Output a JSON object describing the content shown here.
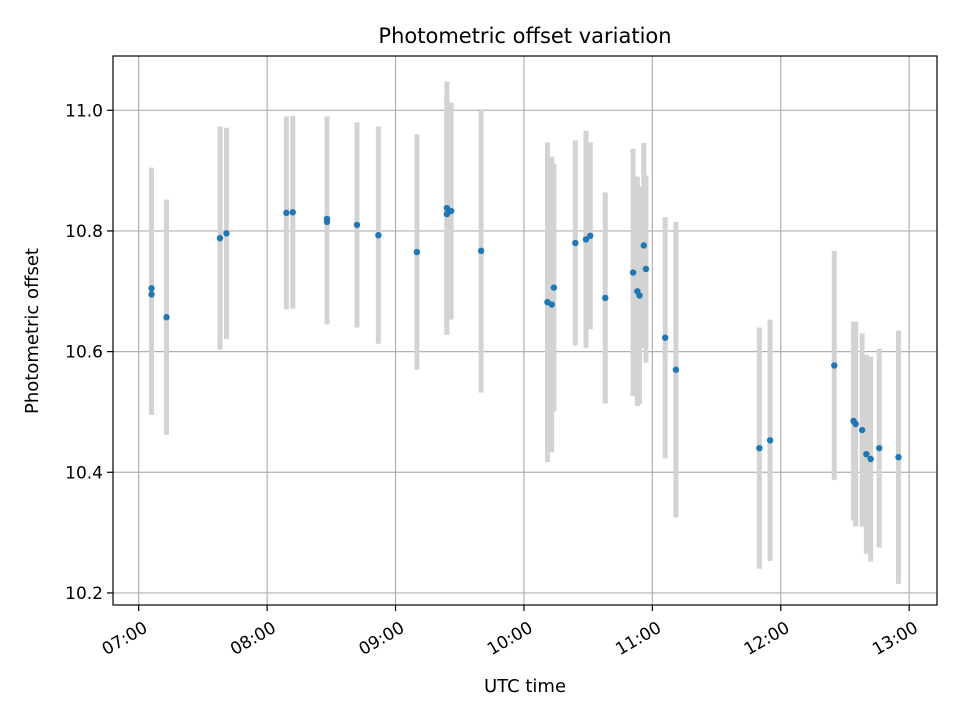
{
  "chart_data": {
    "type": "scatter",
    "title": "Photometric offset variation",
    "xlabel": "UTC time",
    "ylabel": "Photometric offset",
    "x_ticks": [
      "07:00",
      "08:00",
      "09:00",
      "10:00",
      "11:00",
      "12:00",
      "13:00"
    ],
    "y_ticks": [
      "10.2",
      "10.4",
      "10.6",
      "10.8",
      "11.0"
    ],
    "xlim": [
      "06:48",
      "13:13"
    ],
    "ylim": [
      10.18,
      11.09
    ],
    "grid": true,
    "colors": {
      "points": "#1f77b4",
      "errorbars": "#d3d3d3",
      "grid": "#b0b0b0"
    },
    "series": [
      {
        "points": [
          {
            "t": "07:06",
            "y": 10.695,
            "err": 0.2
          },
          {
            "t": "07:06",
            "y": 10.705,
            "err": 0.2
          },
          {
            "t": "07:13",
            "y": 10.657,
            "err": 0.195
          },
          {
            "t": "07:38",
            "y": 10.788,
            "err": 0.185
          },
          {
            "t": "07:41",
            "y": 10.796,
            "err": 0.175
          },
          {
            "t": "08:09",
            "y": 10.83,
            "err": 0.16
          },
          {
            "t": "08:12",
            "y": 10.831,
            "err": 0.16
          },
          {
            "t": "08:28",
            "y": 10.815,
            "err": 0.17
          },
          {
            "t": "08:28",
            "y": 10.82,
            "err": 0.17
          },
          {
            "t": "08:42",
            "y": 10.81,
            "err": 0.17
          },
          {
            "t": "08:52",
            "y": 10.793,
            "err": 0.18
          },
          {
            "t": "09:10",
            "y": 10.765,
            "err": 0.195
          },
          {
            "t": "09:24",
            "y": 10.838,
            "err": 0.21
          },
          {
            "t": "09:24",
            "y": 10.828,
            "err": 0.2
          },
          {
            "t": "09:26",
            "y": 10.833,
            "err": 0.18
          },
          {
            "t": "09:40",
            "y": 10.767,
            "err": 0.235
          },
          {
            "t": "10:11",
            "y": 10.682,
            "err": 0.265
          },
          {
            "t": "10:13",
            "y": 10.678,
            "err": 0.245
          },
          {
            "t": "10:14",
            "y": 10.706,
            "err": 0.205
          },
          {
            "t": "10:24",
            "y": 10.78,
            "err": 0.17
          },
          {
            "t": "10:29",
            "y": 10.786,
            "err": 0.18
          },
          {
            "t": "10:31",
            "y": 10.792,
            "err": 0.155
          },
          {
            "t": "10:38",
            "y": 10.689,
            "err": 0.175
          },
          {
            "t": "10:51",
            "y": 10.731,
            "err": 0.205
          },
          {
            "t": "10:53",
            "y": 10.7,
            "err": 0.19
          },
          {
            "t": "10:54",
            "y": 10.693,
            "err": 0.18
          },
          {
            "t": "10:56",
            "y": 10.776,
            "err": 0.17
          },
          {
            "t": "10:57",
            "y": 10.737,
            "err": 0.155
          },
          {
            "t": "11:06",
            "y": 10.623,
            "err": 0.2
          },
          {
            "t": "11:11",
            "y": 10.57,
            "err": 0.245
          },
          {
            "t": "11:50",
            "y": 10.44,
            "err": 0.2
          },
          {
            "t": "11:55",
            "y": 10.453,
            "err": 0.2
          },
          {
            "t": "12:25",
            "y": 10.577,
            "err": 0.19
          },
          {
            "t": "12:34",
            "y": 10.485,
            "err": 0.165
          },
          {
            "t": "12:35",
            "y": 10.48,
            "err": 0.17
          },
          {
            "t": "12:38",
            "y": 10.47,
            "err": 0.16
          },
          {
            "t": "12:40",
            "y": 10.43,
            "err": 0.165
          },
          {
            "t": "12:42",
            "y": 10.422,
            "err": 0.17
          },
          {
            "t": "12:46",
            "y": 10.44,
            "err": 0.165
          },
          {
            "t": "12:55",
            "y": 10.425,
            "err": 0.21
          }
        ]
      }
    ]
  }
}
